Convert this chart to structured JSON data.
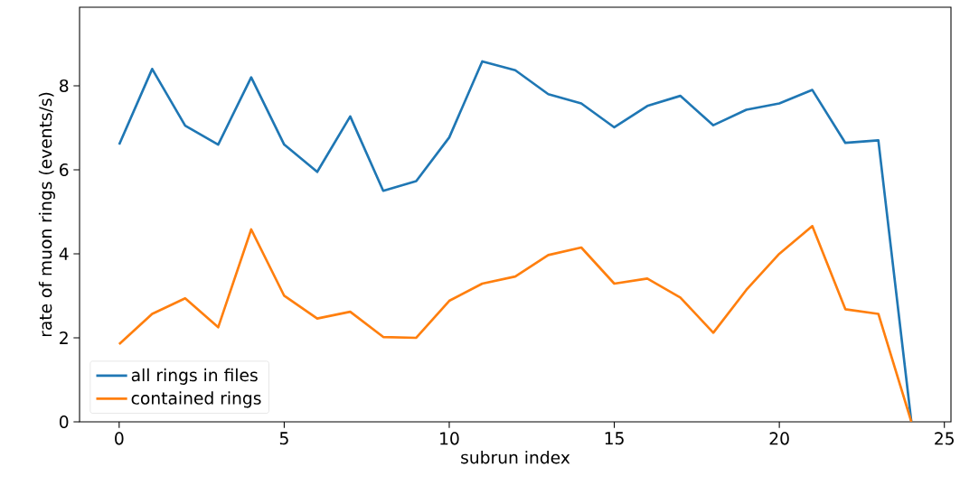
{
  "chart_data": {
    "type": "line",
    "xlabel": "subrun index",
    "ylabel": "rate of muon rings (events/s)",
    "x": [
      0,
      1,
      2,
      3,
      4,
      5,
      6,
      7,
      8,
      9,
      10,
      11,
      12,
      13,
      14,
      15,
      16,
      17,
      18,
      19,
      20,
      21,
      22,
      23,
      24
    ],
    "series": [
      {
        "name": "all rings in files",
        "color": "#1f77b4",
        "values": [
          6.6,
          8.4,
          7.05,
          6.6,
          8.2,
          6.6,
          5.95,
          7.27,
          5.5,
          5.73,
          6.77,
          8.58,
          8.37,
          7.8,
          7.58,
          7.01,
          7.52,
          7.76,
          7.06,
          7.43,
          7.58,
          7.9,
          6.64,
          6.7,
          0
        ]
      },
      {
        "name": "contained rings",
        "color": "#ff7f0e",
        "values": [
          1.85,
          2.57,
          2.94,
          2.25,
          4.58,
          3.0,
          2.46,
          2.62,
          2.02,
          2.0,
          2.88,
          3.29,
          3.46,
          3.97,
          4.15,
          3.29,
          3.41,
          2.96,
          2.12,
          3.14,
          4.0,
          4.66,
          2.68,
          2.57,
          0
        ]
      }
    ],
    "xlim": [
      -1.2,
      25.2
    ],
    "ylim": [
      0,
      9.87
    ],
    "xticks": [
      0,
      5,
      10,
      15,
      20,
      25
    ],
    "yticks": [
      0,
      2,
      4,
      6,
      8
    ],
    "legend": "bottom left",
    "grid": false,
    "marker": "none",
    "line_style": "solid"
  }
}
